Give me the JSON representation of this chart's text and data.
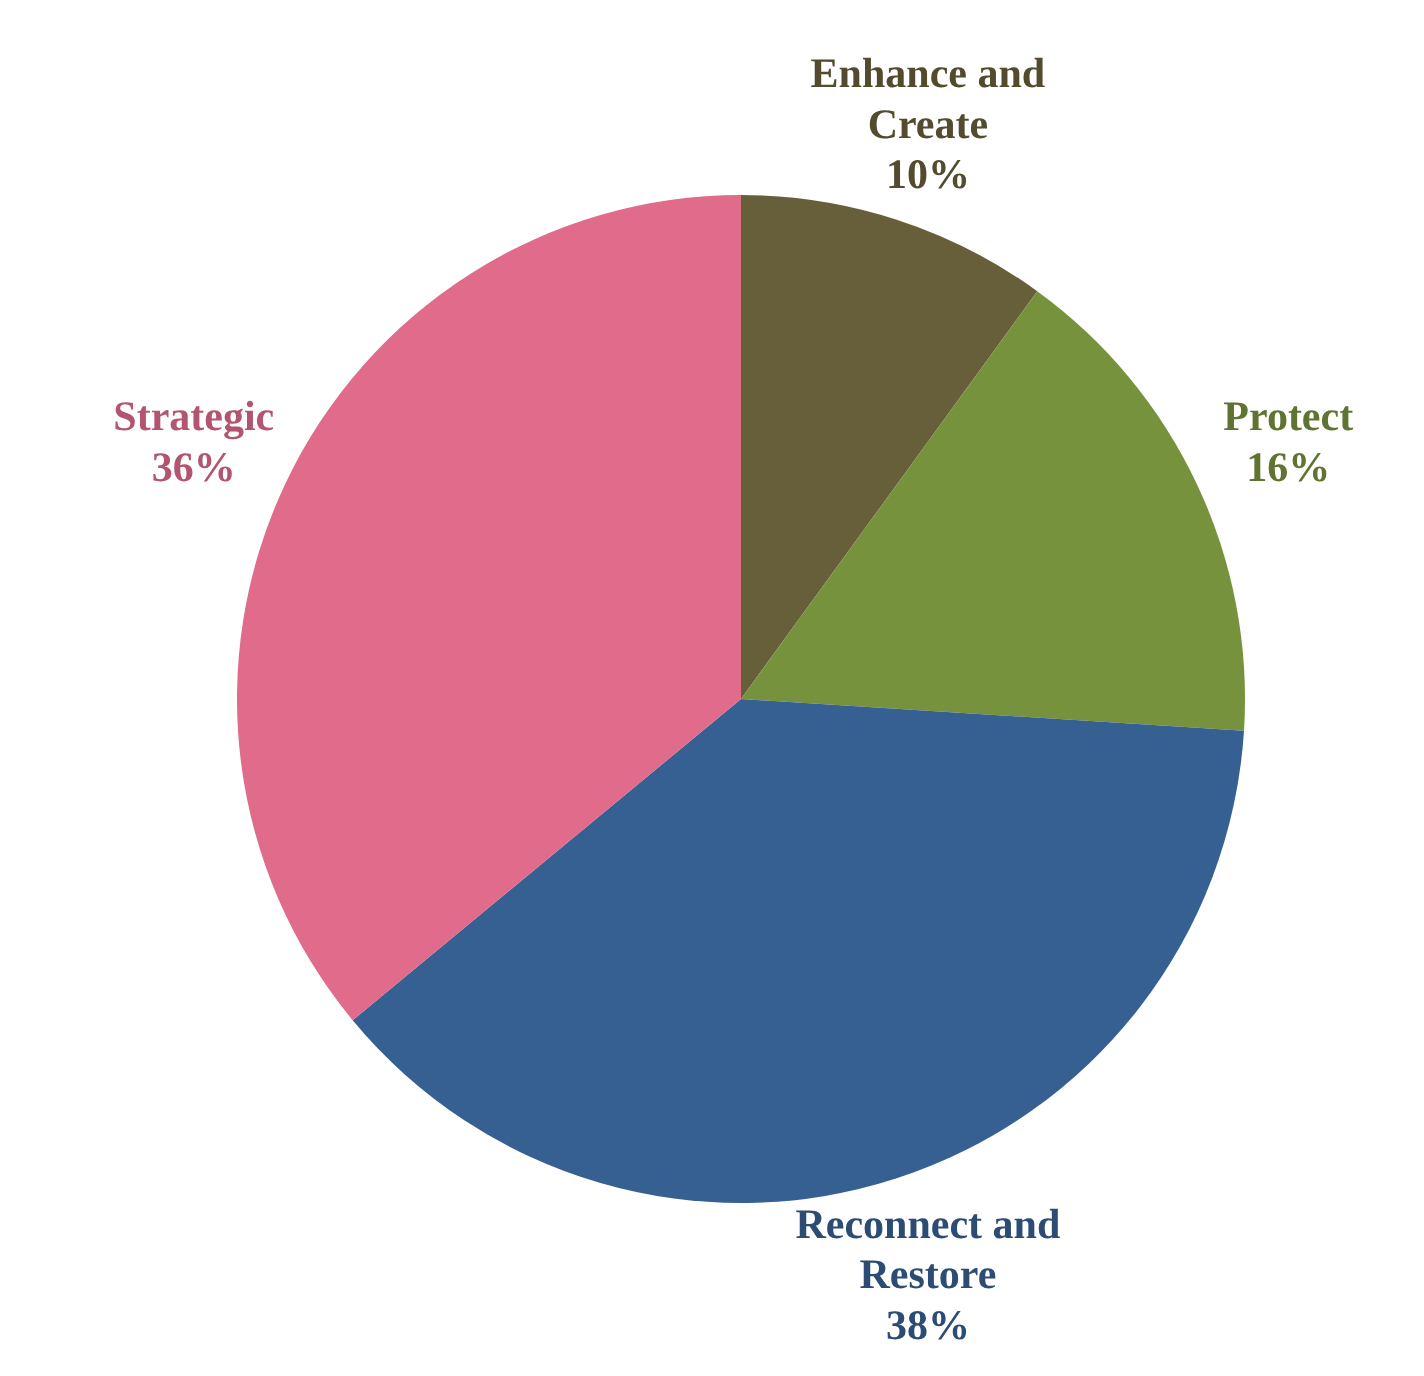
{
  "chart_data": {
    "type": "pie",
    "categories": [
      "Enhance and Create",
      "Protect",
      "Reconnect and Restore",
      "Strategic"
    ],
    "values": [
      10,
      16,
      38,
      36
    ],
    "value_labels": [
      "10%",
      "16%",
      "38%",
      "36%"
    ],
    "colors": [
      "#675e3a",
      "#76923c",
      "#376092",
      "#e06b8a"
    ]
  }
}
